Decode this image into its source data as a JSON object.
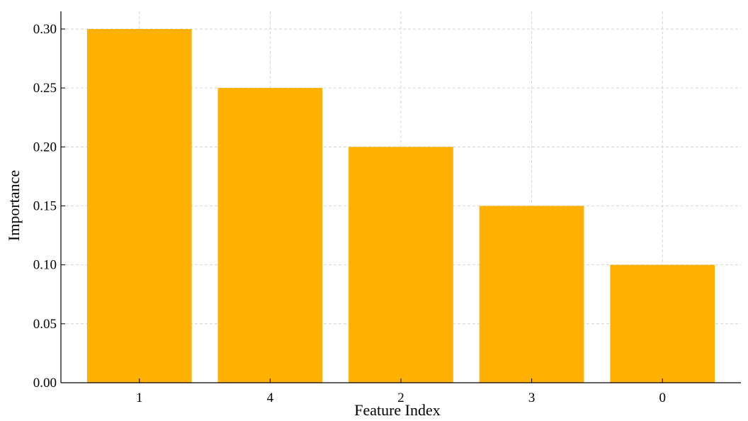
{
  "chart_data": {
    "type": "bar",
    "categories": [
      "1",
      "4",
      "2",
      "3",
      "0"
    ],
    "values": [
      0.3,
      0.25,
      0.2,
      0.15,
      0.1
    ],
    "title": "",
    "xlabel": "Feature Index",
    "ylabel": "Importance",
    "ylim": [
      0,
      0.315
    ],
    "yticks": [
      "0.00",
      "0.05",
      "0.10",
      "0.15",
      "0.20",
      "0.25",
      "0.30"
    ],
    "grid": true,
    "bar_color": "#FFB000",
    "grid_color": "#cccccc"
  }
}
